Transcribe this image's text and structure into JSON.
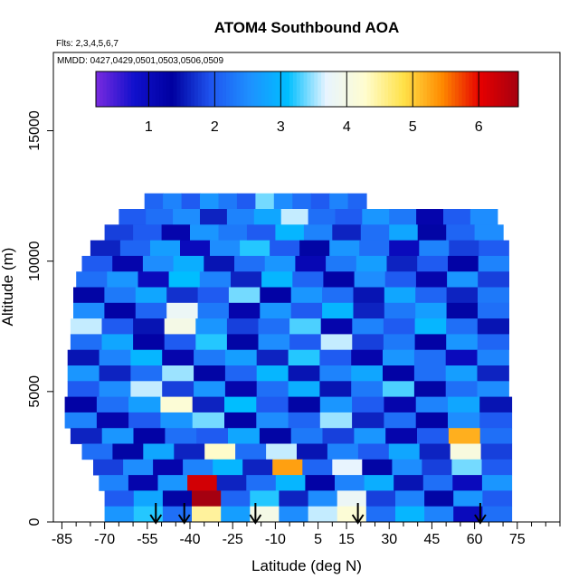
{
  "chart_data": {
    "type": "heatmap",
    "title": "ATOM4 Southbound AOA",
    "flights_note": "Flts: 2,3,4,5,6,7",
    "dates_note": "MMDD: 0427,0429,0501,0503,0506,0509",
    "xlabel": "Latitude (deg N)",
    "ylabel": "Altitude (m)",
    "xlim": [
      -88,
      90
    ],
    "ylim": [
      0,
      18000
    ],
    "x_ticks": [
      -85,
      -70,
      -55,
      -40,
      -25,
      -10,
      5,
      15,
      30,
      45,
      60,
      75
    ],
    "x_tick_labels": [
      "-85",
      "-70",
      "-55",
      "-40",
      "-25",
      "-10",
      "5",
      "15",
      "30",
      "45",
      "60",
      "75"
    ],
    "y_ticks": [
      0,
      5000,
      10000,
      15000
    ],
    "y_tick_labels": [
      "0",
      "5000",
      "10000",
      "15000"
    ],
    "colorbar": {
      "range": [
        0.2,
        6.6
      ],
      "ticks": [
        1,
        2,
        3,
        4,
        5,
        6
      ],
      "tick_labels": [
        "1",
        "2",
        "3",
        "4",
        "5",
        "6"
      ],
      "colors": [
        "#7a2be0",
        "#1010cc",
        "#0000a0",
        "#1f55f0",
        "#1e90ff",
        "#00bfff",
        "#e8f4ff",
        "#fffdd0",
        "#ffe24a",
        "#ff8c00",
        "#e60000",
        "#a50010"
      ]
    },
    "rows": [
      {
        "alt": 12300,
        "x0": -56,
        "x1": 22,
        "values": [
          2.1,
          2.4,
          2.0,
          2.6,
          2.3,
          2.0,
          3.4,
          2.5,
          2.2,
          2.0,
          2.4,
          2.1
        ]
      },
      {
        "alt": 11700,
        "x0": -65,
        "x1": 68,
        "values": [
          2.0,
          2.2,
          2.5,
          1.6,
          2.4,
          2.8,
          3.6,
          2.2,
          2.0,
          2.6,
          2.3,
          1.2,
          2.0,
          2.5
        ]
      },
      {
        "alt": 11100,
        "x0": -70,
        "x1": 70,
        "values": [
          1.8,
          2.0,
          1.2,
          2.6,
          2.3,
          2.0,
          3.0,
          2.4,
          1.6,
          2.2,
          2.8,
          1.4,
          2.1,
          2.5
        ]
      },
      {
        "alt": 10500,
        "x0": -75,
        "x1": 72,
        "values": [
          1.6,
          2.1,
          2.7,
          1.0,
          2.5,
          3.2,
          2.0,
          1.4,
          2.6,
          2.2,
          1.0,
          2.4,
          1.8,
          2.0
        ]
      },
      {
        "alt": 9900,
        "x0": -78,
        "x1": 72,
        "values": [
          2.0,
          1.2,
          2.5,
          2.9,
          1.5,
          2.2,
          2.6,
          1.1,
          2.3,
          2.7,
          1.6,
          2.0,
          1.3,
          2.4
        ]
      },
      {
        "alt": 9300,
        "x0": -80,
        "x1": 72,
        "values": [
          2.2,
          2.6,
          1.0,
          3.1,
          2.4,
          1.6,
          3.0,
          2.1,
          1.3,
          2.5,
          2.0,
          1.2,
          2.6,
          1.8
        ]
      },
      {
        "alt": 8700,
        "x0": -81,
        "x1": 72,
        "values": [
          1.4,
          2.3,
          2.8,
          1.7,
          2.0,
          3.4,
          1.3,
          2.6,
          2.2,
          1.5,
          2.8,
          2.1,
          1.6,
          2.3
        ]
      },
      {
        "alt": 8100,
        "x0": -81,
        "x1": 72,
        "values": [
          2.5,
          1.3,
          2.1,
          3.8,
          2.3,
          1.2,
          2.6,
          2.0,
          3.0,
          1.6,
          2.3,
          2.7,
          1.4,
          2.2
        ]
      },
      {
        "alt": 7500,
        "x0": -82,
        "x1": 72,
        "values": [
          3.6,
          2.0,
          1.5,
          4.0,
          2.6,
          1.8,
          2.2,
          3.3,
          1.2,
          2.4,
          2.0,
          3.0,
          2.2,
          1.5
        ]
      },
      {
        "alt": 6900,
        "x0": -82,
        "x1": 72,
        "values": [
          2.2,
          2.8,
          1.3,
          2.0,
          3.2,
          1.4,
          2.5,
          2.0,
          3.6,
          1.8,
          2.3,
          1.3,
          2.6,
          2.1
        ]
      },
      {
        "alt": 6300,
        "x0": -83,
        "x1": 72,
        "values": [
          1.5,
          2.4,
          3.0,
          1.2,
          2.3,
          2.7,
          1.6,
          3.2,
          2.0,
          1.2,
          2.6,
          2.2,
          1.0,
          2.4
        ]
      },
      {
        "alt": 5700,
        "x0": -83,
        "x1": 72,
        "values": [
          2.6,
          1.6,
          2.2,
          3.5,
          1.4,
          2.1,
          3.0,
          1.5,
          2.4,
          2.8,
          1.3,
          2.2,
          2.7,
          1.6
        ]
      },
      {
        "alt": 5100,
        "x0": -83,
        "x1": 72,
        "values": [
          2.0,
          2.5,
          3.6,
          1.8,
          2.6,
          1.2,
          2.2,
          2.9,
          1.5,
          2.3,
          3.3,
          1.4,
          2.2,
          2.5
        ]
      },
      {
        "alt": 4500,
        "x0": -84,
        "x1": 73,
        "values": [
          1.3,
          2.2,
          2.7,
          4.2,
          1.6,
          3.1,
          2.0,
          1.4,
          2.6,
          2.0,
          1.2,
          2.4,
          2.8,
          1.5
        ]
      },
      {
        "alt": 3900,
        "x0": -84,
        "x1": 73,
        "values": [
          2.4,
          1.2,
          2.0,
          2.6,
          3.4,
          1.3,
          2.5,
          2.1,
          3.5,
          1.6,
          2.2,
          1.3,
          2.5,
          2.0
        ]
      },
      {
        "alt": 3300,
        "x0": -82,
        "x1": 73,
        "values": [
          1.6,
          2.6,
          1.3,
          2.2,
          2.0,
          2.8,
          1.4,
          2.3,
          1.8,
          2.6,
          1.2,
          2.0,
          5.2,
          2.2
        ]
      },
      {
        "alt": 2700,
        "x0": -78,
        "x1": 73,
        "values": [
          2.2,
          1.4,
          2.8,
          1.6,
          4.3,
          2.2,
          3.6,
          1.5,
          2.4,
          2.0,
          2.8,
          1.6,
          4.1,
          1.8
        ]
      },
      {
        "alt": 2100,
        "x0": -74,
        "x1": 73,
        "values": [
          1.8,
          2.5,
          1.2,
          2.4,
          3.0,
          1.6,
          5.3,
          2.1,
          3.7,
          1.4,
          2.5,
          1.8,
          3.4,
          2.0
        ]
      },
      {
        "alt": 1500,
        "x0": -72,
        "x1": 73,
        "values": [
          2.4,
          1.2,
          2.6,
          6.2,
          1.6,
          2.2,
          3.0,
          1.3,
          2.4,
          2.9,
          1.5,
          2.2,
          1.0,
          2.6
        ]
      },
      {
        "alt": 900,
        "x0": -70,
        "x1": 73,
        "values": [
          2.0,
          2.8,
          1.4,
          6.6,
          2.1,
          3.2,
          1.6,
          2.5,
          3.8,
          1.8,
          2.4,
          1.4,
          2.6,
          2.0
        ]
      },
      {
        "alt": 300,
        "x0": -70,
        "x1": 73,
        "values": [
          2.6,
          3.2,
          2.2,
          4.5,
          2.7,
          4.0,
          2.5,
          3.6,
          4.2,
          2.2,
          3.0,
          2.4,
          1.0,
          2.2
        ]
      }
    ],
    "arrows_lat": [
      -52,
      -42,
      -17,
      19,
      62
    ]
  }
}
